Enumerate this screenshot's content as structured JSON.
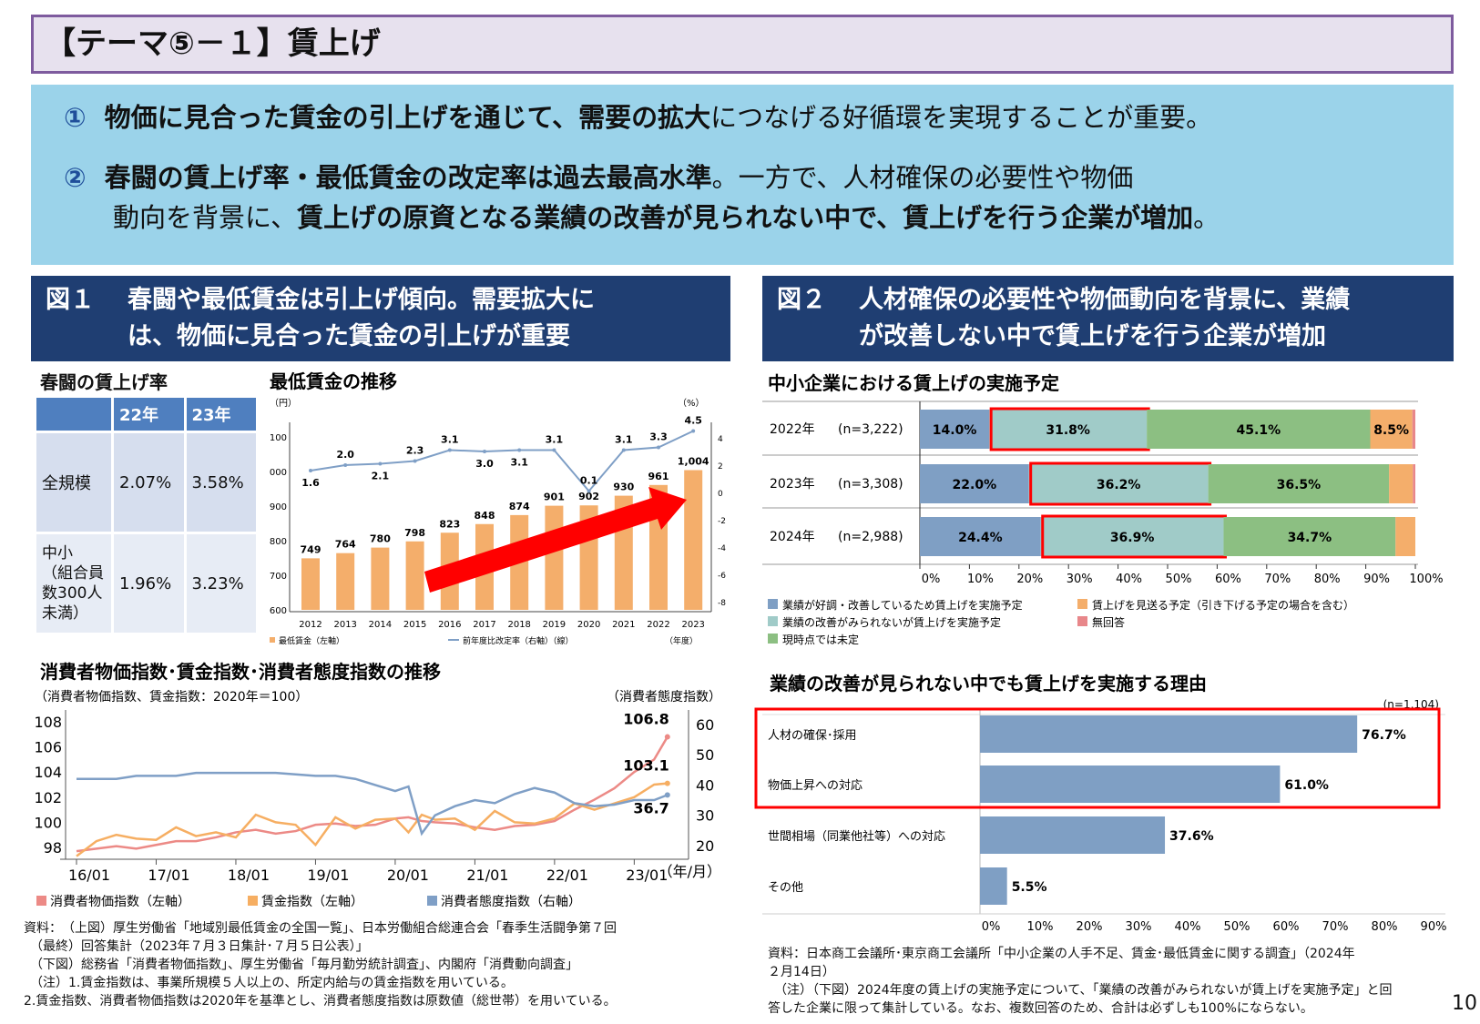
{
  "title": "【テーマ⑤－１】賃上げ",
  "summary": {
    "p1": {
      "num": "①",
      "bold": "物価に見合った賃金の引上げを通じて、需要の拡大",
      "rest": "につなげる好循環を実現することが重要。"
    },
    "p2": {
      "num": "②",
      "bold1": "春闘の賃上げ率・最低賃金の改定率は過去最高水準",
      "mid": "。一方で、人材確保の必要性や物価",
      "mid2": "動向を背景に、",
      "bold2": "賃上げの原資となる業績の改善が見られない中で、賃上げを行う企業が増加",
      "end": "。"
    }
  },
  "fig1": {
    "label": "図１",
    "line1": "春闘や最低賃金は引上げ傾向。需要拡大に",
    "line2": "は、物価に見合った賃金の引上げが重要"
  },
  "fig2": {
    "label": "図２",
    "line1": "人材確保の必要性や物価動向を背景に、業績",
    "line2": "が改善しない中で賃上げを行う企業が増加"
  },
  "shunto": {
    "title": "春闘の賃上げ率",
    "headers": [
      "",
      "22年",
      "23年"
    ],
    "rows": [
      {
        "label": "全規模",
        "v22": "2.07%",
        "v23": "3.58%"
      },
      {
        "label": "中小\n（組合員数300人未満）",
        "v22": "1.96%",
        "v23": "3.23%"
      }
    ]
  },
  "colors": {
    "orange": "#f4ae6b",
    "blue_line": "#7f9fc6",
    "cpi": "#ec8a86",
    "wage": "#f6ae62",
    "conf": "#7f9fc6",
    "good": "#7f9fc4",
    "notimproved": "#a0cbc8",
    "undecided": "#8cbf82",
    "skip": "#f4ae6b",
    "noanswer": "#e8878a",
    "arrow": "#ff0000",
    "navy": "#1f3e72"
  },
  "chart_data": [
    {
      "type": "bar",
      "title": "最低賃金の推移",
      "y_unit_left": "（円）",
      "y_unit_right": "（%）",
      "x_unit": "（年度）",
      "categories": [
        "2012",
        "2013",
        "2014",
        "2015",
        "2016",
        "2017",
        "2018",
        "2019",
        "2020",
        "2021",
        "2022",
        "2023"
      ],
      "series": [
        {
          "name": "最低賃金（左軸）",
          "type": "bar",
          "values": [
            749,
            764,
            780,
            798,
            823,
            848,
            874,
            901,
            902,
            930,
            961,
            1004
          ],
          "labels": [
            "749",
            "764",
            "780",
            "798",
            "823",
            "848",
            "874",
            "901",
            "902",
            "930",
            "961",
            "1,004"
          ]
        },
        {
          "name": "前年度比改定率（右軸）（線）",
          "type": "line",
          "values": [
            1.6,
            2.0,
            2.1,
            2.3,
            3.1,
            3.0,
            3.1,
            3.1,
            0.1,
            3.1,
            3.3,
            4.5
          ]
        }
      ],
      "ylim_left": [
        600,
        1100
      ],
      "yticks_left": [
        "600",
        "700",
        "800",
        "900",
        "1000",
        "1100"
      ],
      "ylim_right": [
        -8,
        4
      ],
      "yticks_right": [
        "4",
        "2",
        "0",
        "-2",
        "-4",
        "-6",
        "-8"
      ],
      "annotation": "red upward arrow"
    },
    {
      "type": "line",
      "title": "消費者物価指数･賃金指数･消費者態度指数の推移",
      "subtitle": "（消費者物価指数、賃金指数：2020年＝100）",
      "ylabel_right": "（消費者態度指数）",
      "x_unit": "（年/月）",
      "xticks": [
        "16/01",
        "17/01",
        "18/01",
        "19/01",
        "20/01",
        "21/01",
        "22/01",
        "23/01"
      ],
      "x": [
        "16/01",
        "16/04",
        "16/07",
        "16/10",
        "17/01",
        "17/04",
        "17/07",
        "17/10",
        "18/01",
        "18/04",
        "18/07",
        "18/10",
        "19/01",
        "19/04",
        "19/07",
        "19/10",
        "20/01",
        "20/03",
        "20/05",
        "20/07",
        "20/10",
        "21/01",
        "21/04",
        "21/07",
        "21/10",
        "22/01",
        "22/04",
        "22/07",
        "22/10",
        "23/01",
        "23/04",
        "23/06"
      ],
      "ylim_left": [
        97,
        108.8
      ],
      "yticks_left": [
        "98",
        "100",
        "102",
        "104",
        "106",
        "108"
      ],
      "ylim_right": [
        15,
        60
      ],
      "yticks_right": [
        "20",
        "30",
        "40",
        "50",
        "60"
      ],
      "series": [
        {
          "name": "消費者物価指数（左軸）",
          "axis": "left",
          "values": [
            97.7,
            97.9,
            98.1,
            97.9,
            98.2,
            98.5,
            98.5,
            98.8,
            99.2,
            99.4,
            99.1,
            99.3,
            99.8,
            99.9,
            99.7,
            99.8,
            100.3,
            100.4,
            100.1,
            100.0,
            99.9,
            99.6,
            99.4,
            99.7,
            99.8,
            100.1,
            101.0,
            101.8,
            102.7,
            104.0,
            105.0,
            106.8
          ],
          "end_label": "106.8"
        },
        {
          "name": "賃金指数（左軸）",
          "axis": "left",
          "values": [
            97.3,
            98.5,
            99.0,
            98.7,
            98.6,
            99.6,
            98.9,
            99.2,
            98.8,
            100.6,
            100.0,
            99.8,
            98.2,
            100.4,
            99.5,
            100.2,
            100.3,
            99.2,
            100.6,
            100.2,
            100.3,
            99.4,
            100.9,
            100.0,
            99.9,
            100.3,
            101.5,
            101.0,
            101.5,
            102.0,
            103.0,
            103.1
          ],
          "end_label": "103.1"
        },
        {
          "name": "消費者態度指数（右軸）",
          "axis": "right",
          "values": [
            42,
            42,
            42,
            43,
            43,
            43,
            44,
            44,
            44,
            44,
            44,
            43.5,
            43,
            43,
            42,
            40,
            38,
            39.5,
            24,
            30,
            33,
            35,
            34,
            37,
            39,
            37.5,
            34,
            33,
            33.5,
            35,
            35,
            36.7
          ],
          "end_label": "36.7"
        }
      ]
    },
    {
      "type": "bar",
      "orientation": "horizontal-stacked",
      "title": "中小企業における賃上げの実施予定",
      "categories": [
        {
          "year": "2022年",
          "n": "(n=3,222)"
        },
        {
          "year": "2023年",
          "n": "(n=3,308)"
        },
        {
          "year": "2024年",
          "n": "(n=2,988)"
        }
      ],
      "series": [
        {
          "name": "業績が好調・改善しているため賃上げを実施予定",
          "values": [
            14.0,
            22.0,
            24.4
          ],
          "labels": [
            "14.0%",
            "22.0%",
            "24.4%"
          ]
        },
        {
          "name": "業績の改善がみられないが賃上げを実施予定",
          "values": [
            31.8,
            36.2,
            36.9
          ],
          "labels": [
            "31.8%",
            "36.2%",
            "36.9%"
          ],
          "highlighted": true
        },
        {
          "name": "現時点では未定",
          "values": [
            45.1,
            36.5,
            34.7
          ],
          "labels": [
            "45.1%",
            "36.5%",
            "34.7%"
          ]
        },
        {
          "name": "賃上げを見送る予定（引き下げる予定の場合を含む）",
          "values": [
            8.5,
            4.8,
            4.0
          ],
          "labels": [
            "8.5%",
            "",
            ""
          ]
        },
        {
          "name": "無回答",
          "values": [
            0.6,
            0.5,
            0.0
          ],
          "labels": [
            "",
            "",
            ""
          ]
        }
      ],
      "xlim": [
        0,
        100
      ],
      "xticks": [
        "0%",
        "10%",
        "20%",
        "30%",
        "40%",
        "50%",
        "60%",
        "70%",
        "80%",
        "90%",
        "100%"
      ],
      "legend": "bottom"
    },
    {
      "type": "bar",
      "orientation": "horizontal",
      "title": "業績の改善が見られない中でも賃上げを実施する理由",
      "n_label": "(n=1,104)",
      "categories": [
        "人材の確保･採用",
        "物価上昇への対応",
        "世間相場（同業他社等）への対応",
        "その他"
      ],
      "values": [
        76.7,
        61.0,
        37.6,
        5.5
      ],
      "labels": [
        "76.7%",
        "61.0%",
        "37.6%",
        "5.5%"
      ],
      "highlighted": [
        "人材の確保･採用",
        "物価上昇への対応"
      ],
      "xlim": [
        0,
        90
      ],
      "xticks": [
        "0%",
        "10%",
        "20%",
        "30%",
        "40%",
        "50%",
        "60%",
        "70%",
        "80%",
        "90%"
      ]
    }
  ],
  "notes_left": [
    "資料：　（上図）厚生労働省「地域別最低賃金の全国一覧」、日本労働組合総連合会「春季生活闘争第７回",
    "　（最終）回答集計（2023年７月３日集計･７月５日公表）」",
    "　（下図）総務省「消費者物価指数」、厚生労働省「毎月勤労統計調査」、内閣府「消費動向調査」",
    "　（注）1.賃金指数は、事業所規模５人以上の、所定内給与の賃金指数を用いている。",
    "2.賃金指数、消費者物価指数は2020年を基準とし、消費者態度指数は原数値（総世帯）を用いている。"
  ],
  "notes_right": [
    "資料：日本商工会議所･東京商工会議所「中小企業の人手不足、賃金･最低賃金に関する調査」（2024年",
    "２月14日）",
    "　（注）（下図）2024年度の賃上げの実施予定について、「業績の改善がみられないが賃上げを実施予定」と回",
    "答した企業に限って集計している。なお、複数回答のため、合計は必ずしも100%にならない。"
  ],
  "page_number": "10"
}
